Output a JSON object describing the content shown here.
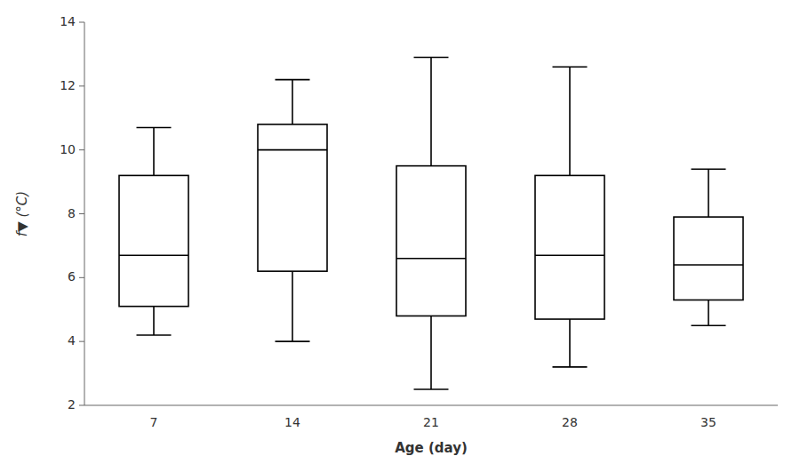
{
  "chart_data": {
    "type": "box",
    "xlabel": "Age (day)",
    "ylabel": "f▼ (°C)",
    "categories": [
      "7",
      "14",
      "21",
      "28",
      "35"
    ],
    "values": [
      {
        "whislo": 4.2,
        "q1": 5.1,
        "med": 6.7,
        "q3": 9.2,
        "whishi": 10.7
      },
      {
        "whislo": 4.0,
        "q1": 6.2,
        "med": 10.0,
        "q3": 10.8,
        "whishi": 12.2
      },
      {
        "whislo": 2.5,
        "q1": 4.8,
        "med": 6.6,
        "q3": 9.5,
        "whishi": 12.9
      },
      {
        "whislo": 3.2,
        "q1": 4.7,
        "med": 6.7,
        "q3": 9.2,
        "whishi": 12.6
      },
      {
        "whislo": 4.5,
        "q1": 5.3,
        "med": 6.4,
        "q3": 7.9,
        "whishi": 9.4
      }
    ],
    "color": "#000000",
    "ylim": [
      2,
      14
    ],
    "yticks": [
      2,
      4,
      6,
      8,
      10,
      12,
      14
    ],
    "grid": false
  }
}
